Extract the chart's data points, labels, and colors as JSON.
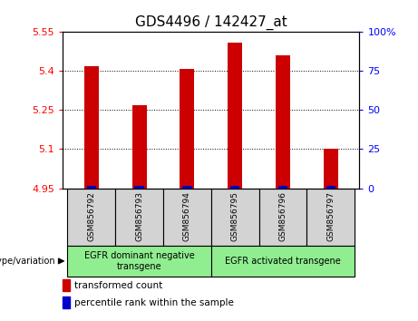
{
  "title": "GDS4496 / 142427_at",
  "samples": [
    "GSM856792",
    "GSM856793",
    "GSM856794",
    "GSM856795",
    "GSM856796",
    "GSM856797"
  ],
  "red_values": [
    5.42,
    5.27,
    5.41,
    5.51,
    5.46,
    5.1
  ],
  "y_min": 4.95,
  "y_max": 5.55,
  "y_ticks": [
    4.95,
    5.1,
    5.25,
    5.4,
    5.55
  ],
  "y_tick_labels": [
    "4.95",
    "5.1",
    "5.25",
    "5.4",
    "5.55"
  ],
  "y2_ticks": [
    0,
    25,
    50,
    75,
    100
  ],
  "y2_tick_labels": [
    "0",
    "25",
    "50",
    "75",
    "100%"
  ],
  "groups": [
    {
      "label": "EGFR dominant negative\ntransgene",
      "start": 0,
      "end": 3,
      "color": "#90ee90"
    },
    {
      "label": "EGFR activated transgene",
      "start": 3,
      "end": 6,
      "color": "#90ee90"
    }
  ],
  "genotype_label": "genotype/variation",
  "legend_red": "transformed count",
  "legend_blue": "percentile rank within the sample",
  "bar_color_red": "#cc0000",
  "bar_color_blue": "#0000cc",
  "bar_width": 0.3,
  "background_color": "#ffffff",
  "plot_bg_color": "#ffffff",
  "sample_box_color": "#d3d3d3",
  "title_fontsize": 11
}
